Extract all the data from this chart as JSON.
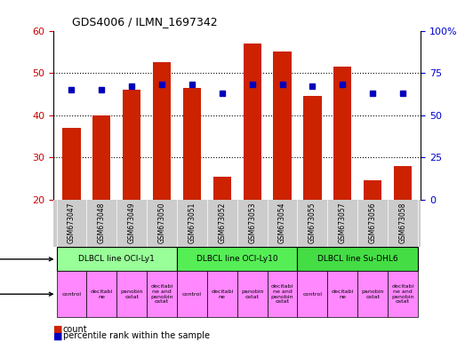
{
  "title": "GDS4006 / ILMN_1697342",
  "samples": [
    "GSM673047",
    "GSM673048",
    "GSM673049",
    "GSM673050",
    "GSM673051",
    "GSM673052",
    "GSM673053",
    "GSM673054",
    "GSM673055",
    "GSM673057",
    "GSM673056",
    "GSM673058"
  ],
  "counts": [
    37,
    40,
    46,
    52.5,
    46.5,
    25.5,
    57,
    55,
    44.5,
    51.5,
    24.5,
    28
  ],
  "percentiles": [
    65,
    65,
    67,
    68,
    68,
    63,
    68,
    68,
    67,
    68,
    63,
    63
  ],
  "ylim_left": [
    20,
    60
  ],
  "ylim_right": [
    0,
    100
  ],
  "yticks_left": [
    20,
    30,
    40,
    50,
    60
  ],
  "yticks_right": [
    0,
    25,
    50,
    75,
    100
  ],
  "ytick_labels_right": [
    "0",
    "25",
    "50",
    "75",
    "100%"
  ],
  "bar_color": "#cc2200",
  "dot_color": "#0000bb",
  "cell_line_data": [
    {
      "label": "DLBCL line OCI-Ly1",
      "start": 0,
      "end": 4,
      "color": "#99ff99"
    },
    {
      "label": "DLBCL line OCI-Ly10",
      "start": 4,
      "end": 8,
      "color": "#55ee55"
    },
    {
      "label": "DLBCL line Su-DHL6",
      "start": 8,
      "end": 12,
      "color": "#44dd44"
    }
  ],
  "agents": [
    "control",
    "decitabi\nne",
    "panobin\nostat",
    "decitabi\nne and\npanobin\nostat",
    "control",
    "decitabi\nne",
    "panobin\nostat",
    "decitabi\nne and\npanobin\nostat",
    "control",
    "decitabi\nne",
    "panobin\nostat",
    "decitabi\nne and\npanobin\nostat"
  ],
  "grid_dotted_yticks": [
    30,
    40,
    50
  ],
  "bg_color": "#ffffff",
  "tick_color_left": "#cc0000",
  "tick_color_right": "#0000cc",
  "xtick_bg": "#cccccc",
  "cell_line_border": "#000000",
  "agent_color": "#ff88ff"
}
